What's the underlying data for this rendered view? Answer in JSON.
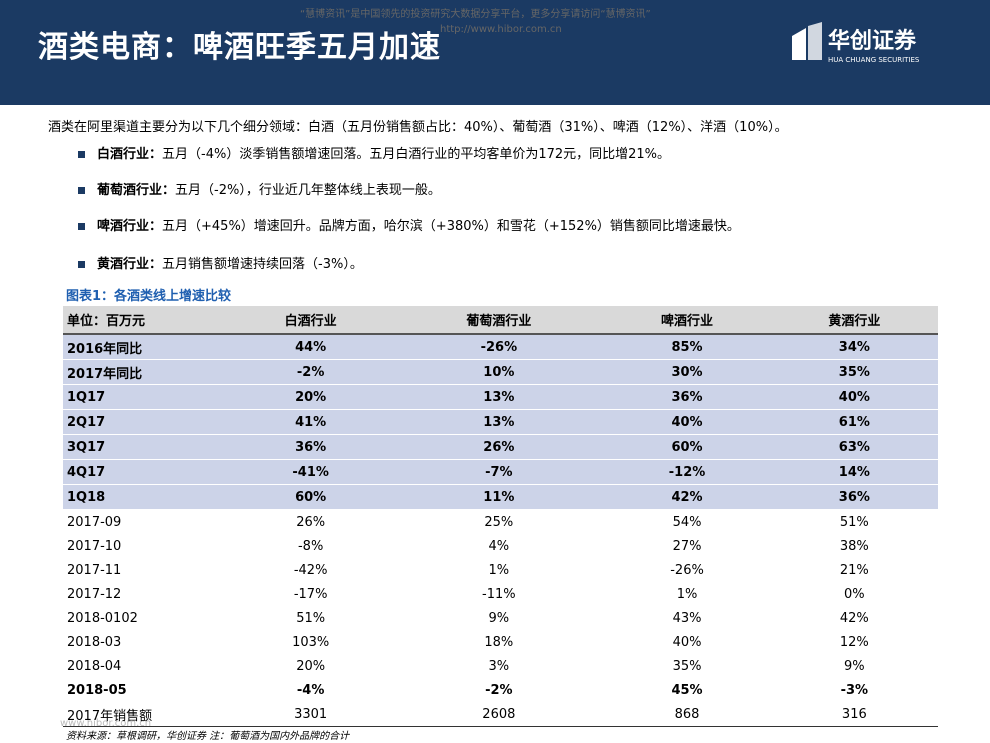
{
  "watermark": {
    "line1": "“慧博资讯”是中国领先的投资研究大数据分享平台，更多分享请访问“慧博资讯”",
    "line2": "http://www.hibor.com.cn",
    "footer": "www.hibor.com.cn"
  },
  "header": {
    "title": "酒类电商：啤酒旺季五月加速",
    "logo": "华创证券",
    "logo_sub": "HUA CHUANG SECURITIES"
  },
  "intro": "酒类在阿里渠道主要分为以下几个细分领域：白酒（五月份销售额占比：40%）、葡萄酒（31%）、啤酒（12%）、洋酒（10%）。",
  "bullets": [
    {
      "label": "白酒行业：",
      "text": "五月（-4%）淡季销售额增速回落。五月白酒行业的平均客单价为172元，同比增21%。"
    },
    {
      "label": "葡萄酒行业：",
      "text": "五月（-2%），行业近几年整体线上表现一般。"
    },
    {
      "label": "啤酒行业：",
      "text": "五月（+45%）增速回升。品牌方面，哈尔滨（+380%）和雪花（+152%）销售额同比增速最快。"
    },
    {
      "label": "黄酒行业：",
      "text": "五月销售额增速持续回落（-3%）。"
    }
  ],
  "table": {
    "title": "图表1：各酒类线上增速比较",
    "columns": [
      "单位：百万元",
      "白酒行业",
      "葡萄酒行业",
      "啤酒行业",
      "黄酒行业"
    ],
    "rows": [
      [
        "2016年同比",
        "44%",
        "-26%",
        "85%",
        "34%"
      ],
      [
        "2017年同比",
        "-2%",
        "10%",
        "30%",
        "35%"
      ],
      [
        "1Q17",
        "20%",
        "13%",
        "36%",
        "40%"
      ],
      [
        "2Q17",
        "41%",
        "13%",
        "40%",
        "61%"
      ],
      [
        "3Q17",
        "36%",
        "26%",
        "60%",
        "63%"
      ],
      [
        "4Q17",
        "-41%",
        "-7%",
        "-12%",
        "14%"
      ],
      [
        "1Q18",
        "60%",
        "11%",
        "42%",
        "36%"
      ],
      [
        "2017-09",
        "26%",
        "25%",
        "54%",
        "51%"
      ],
      [
        "2017-10",
        "-8%",
        "4%",
        "27%",
        "38%"
      ],
      [
        "2017-11",
        "-42%",
        "1%",
        "-26%",
        "21%"
      ],
      [
        "2017-12",
        "-17%",
        "-11%",
        "1%",
        "0%"
      ],
      [
        "2018-0102",
        "51%",
        "9%",
        "43%",
        "42%"
      ],
      [
        "2018-03",
        "103%",
        "18%",
        "40%",
        "12%"
      ],
      [
        "2018-04",
        "20%",
        "3%",
        "35%",
        "9%"
      ],
      [
        "2018-05",
        "-4%",
        "-2%",
        "45%",
        "-3%"
      ],
      [
        "2017年销售额",
        "3301",
        "2608",
        "868",
        "316"
      ]
    ]
  },
  "source": "资料来源：草根调研，华创证券  注：葡萄酒为国内外品牌的合计"
}
